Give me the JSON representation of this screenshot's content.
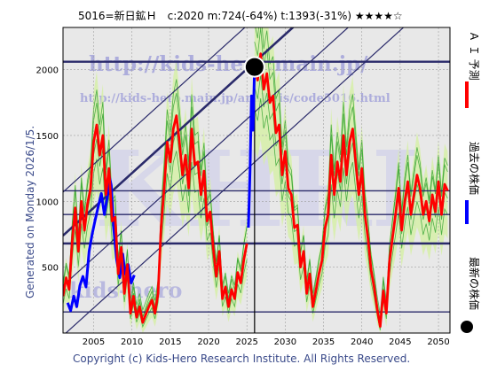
{
  "header": {
    "title": "5016=新日鉱Ｈ　c:2020  m:724(-64%)  t:1393(-31%)  ★★★★☆"
  },
  "side_note": "Generated on Monday 2026/1/5.",
  "footer": "Copyright (c) Kids-Hero Research Institute. All Rights Reserved.",
  "watermark": {
    "url_main": "http://kids-hero.main.jp/",
    "url_sub": "http://kids-hero.main.jp/analysis/code5016.html",
    "logo": "KHRI",
    "brand": "kids-hero"
  },
  "legend": [
    {
      "label": "Ａ Ｉ 予測",
      "color": "#ff0000",
      "marker": "line"
    },
    {
      "label": "過去の株価",
      "color": "#0000ff",
      "marker": "line"
    },
    {
      "label": "最新の株価",
      "color": "#000000",
      "marker": "dot"
    }
  ],
  "colors": {
    "prediction": "#ff0000",
    "history": "#0000ff",
    "band": "#2ca02c",
    "band_fill": "#d4f0a0",
    "yellow_fill": "#f8f4b0",
    "guide": "#2a2a6a",
    "grid": "#a0a0a0",
    "plot_bg": "#e8e8e8"
  },
  "chart_data": {
    "type": "line",
    "xlim": [
      2001.0,
      2051.5
    ],
    "ylim": [
      0,
      2320
    ],
    "xticks": [
      2005,
      2010,
      2015,
      2020,
      2025,
      2030,
      2035,
      2040,
      2045,
      2050
    ],
    "yticks": [
      500,
      1000,
      1500,
      2000
    ],
    "grid": true,
    "current": {
      "x": 2026.0,
      "y": 2020
    },
    "horizontal_levels": [
      {
        "value": 2060,
        "weight": "bold"
      },
      {
        "value": 1080,
        "weight": "normal"
      },
      {
        "value": 900,
        "weight": "normal"
      },
      {
        "value": 680,
        "weight": "bold"
      },
      {
        "value": 160,
        "weight": "normal"
      }
    ],
    "trend_lines": [
      {
        "x": [
          2001.0,
          2051.5
        ],
        "y": [
          1070,
          3730
        ]
      },
      {
        "x": [
          2001.0,
          2051.5
        ],
        "y": [
          740,
          3400
        ],
        "weight": "bold"
      },
      {
        "x": [
          2001.0,
          2051.5
        ],
        "y": [
          360,
          3020
        ]
      },
      {
        "x": [
          2001.0,
          2051.5
        ],
        "y": [
          -20,
          2640
        ]
      }
    ],
    "series": [
      {
        "role": "history",
        "x": [
          2001.6,
          2002.0,
          2002.4,
          2002.8,
          2003.2,
          2003.6,
          2004.0,
          2004.4,
          2004.8,
          2005.2,
          2005.6,
          2006.0,
          2006.4,
          2006.8,
          2007.0,
          2007.3,
          2007.6,
          2008.0,
          2008.4,
          2008.8,
          2009.1,
          2009.5,
          2009.9,
          2010.3
        ],
        "y": [
          230,
          170,
          280,
          200,
          360,
          430,
          350,
          620,
          750,
          860,
          960,
          1060,
          900,
          1040,
          1200,
          1120,
          800,
          560,
          420,
          600,
          450,
          520,
          380,
          440
        ]
      },
      {
        "role": "history",
        "x": [
          2025.2,
          2025.4,
          2025.6,
          2025.8,
          2026.0
        ],
        "y": [
          800,
          1230,
          1800,
          1540,
          2020
        ]
      },
      {
        "role": "prediction",
        "x": [
          2001.0,
          2001.4,
          2001.8,
          2002.2,
          2002.6,
          2003.0,
          2003.4,
          2003.8,
          2004.2,
          2004.6,
          2005.0,
          2005.4,
          2005.8,
          2006.2,
          2006.6,
          2007.0,
          2007.4,
          2007.8,
          2008.2,
          2008.6,
          2009.0,
          2009.4,
          2009.8,
          2010.2,
          2010.6,
          2011.0,
          2011.4,
          2011.8,
          2012.2,
          2012.6,
          2013.0,
          2013.4,
          2013.8,
          2014.2,
          2014.6,
          2015.0,
          2015.4,
          2015.8,
          2016.2,
          2016.6,
          2017.0,
          2017.4,
          2017.8,
          2018.2,
          2018.6,
          2019.0,
          2019.4,
          2019.8,
          2020.2,
          2020.6,
          2021.0,
          2021.4,
          2021.8,
          2022.2,
          2022.6,
          2023.0,
          2023.4,
          2023.8,
          2024.2,
          2024.6,
          2025.0
        ],
        "y": [
          280,
          420,
          330,
          700,
          950,
          620,
          1000,
          780,
          980,
          1100,
          1450,
          1580,
          1350,
          1500,
          1050,
          1250,
          850,
          880,
          450,
          650,
          300,
          520,
          150,
          280,
          120,
          200,
          80,
          140,
          200,
          250,
          150,
          300,
          800,
          1100,
          1450,
          1300,
          1550,
          1650,
          1450,
          1200,
          1350,
          1100,
          1550,
          1280,
          1300,
          1050,
          1230,
          850,
          920,
          650,
          430,
          620,
          260,
          350,
          200,
          330,
          260,
          460,
          380,
          560,
          680
        ]
      },
      {
        "role": "prediction",
        "x": [
          2026.0,
          2026.4,
          2026.8,
          2027.2,
          2027.6,
          2028.0,
          2028.4,
          2028.8,
          2029.2,
          2029.6,
          2030.0,
          2030.4,
          2030.8,
          2031.2,
          2031.6,
          2032.0,
          2032.4,
          2032.8,
          2033.2,
          2033.6,
          2034.0,
          2034.4,
          2034.8,
          2035.2,
          2035.6,
          2036.0,
          2036.4,
          2036.8,
          2037.2,
          2037.6,
          2038.0,
          2038.4,
          2038.8,
          2039.2,
          2039.6,
          2040.0,
          2040.4,
          2040.8,
          2041.2,
          2041.6,
          2042.0,
          2042.4,
          2042.8,
          2043.2,
          2043.6,
          2044.0,
          2044.4,
          2044.8,
          2045.2,
          2045.6,
          2046.0,
          2046.4,
          2046.8,
          2047.2,
          2047.6,
          2048.0,
          2048.4,
          2048.8,
          2049.2,
          2049.6,
          2050.0,
          2050.4,
          2050.8,
          2051.2
        ],
        "y": [
          2020,
          1920,
          2120,
          1850,
          1970,
          1750,
          1800,
          1520,
          1580,
          1200,
          1380,
          1100,
          1050,
          800,
          820,
          500,
          620,
          300,
          450,
          200,
          320,
          450,
          550,
          800,
          900,
          1350,
          1050,
          1300,
          1150,
          1500,
          1200,
          1450,
          1550,
          1300,
          1050,
          1250,
          900,
          720,
          480,
          350,
          180,
          50,
          320,
          150,
          540,
          720,
          900,
          1100,
          780,
          1000,
          1150,
          900,
          1050,
          1200,
          1100,
          900,
          1000,
          850,
          1050,
          920,
          1150,
          900,
          1130,
          1080
        ]
      }
    ]
  }
}
